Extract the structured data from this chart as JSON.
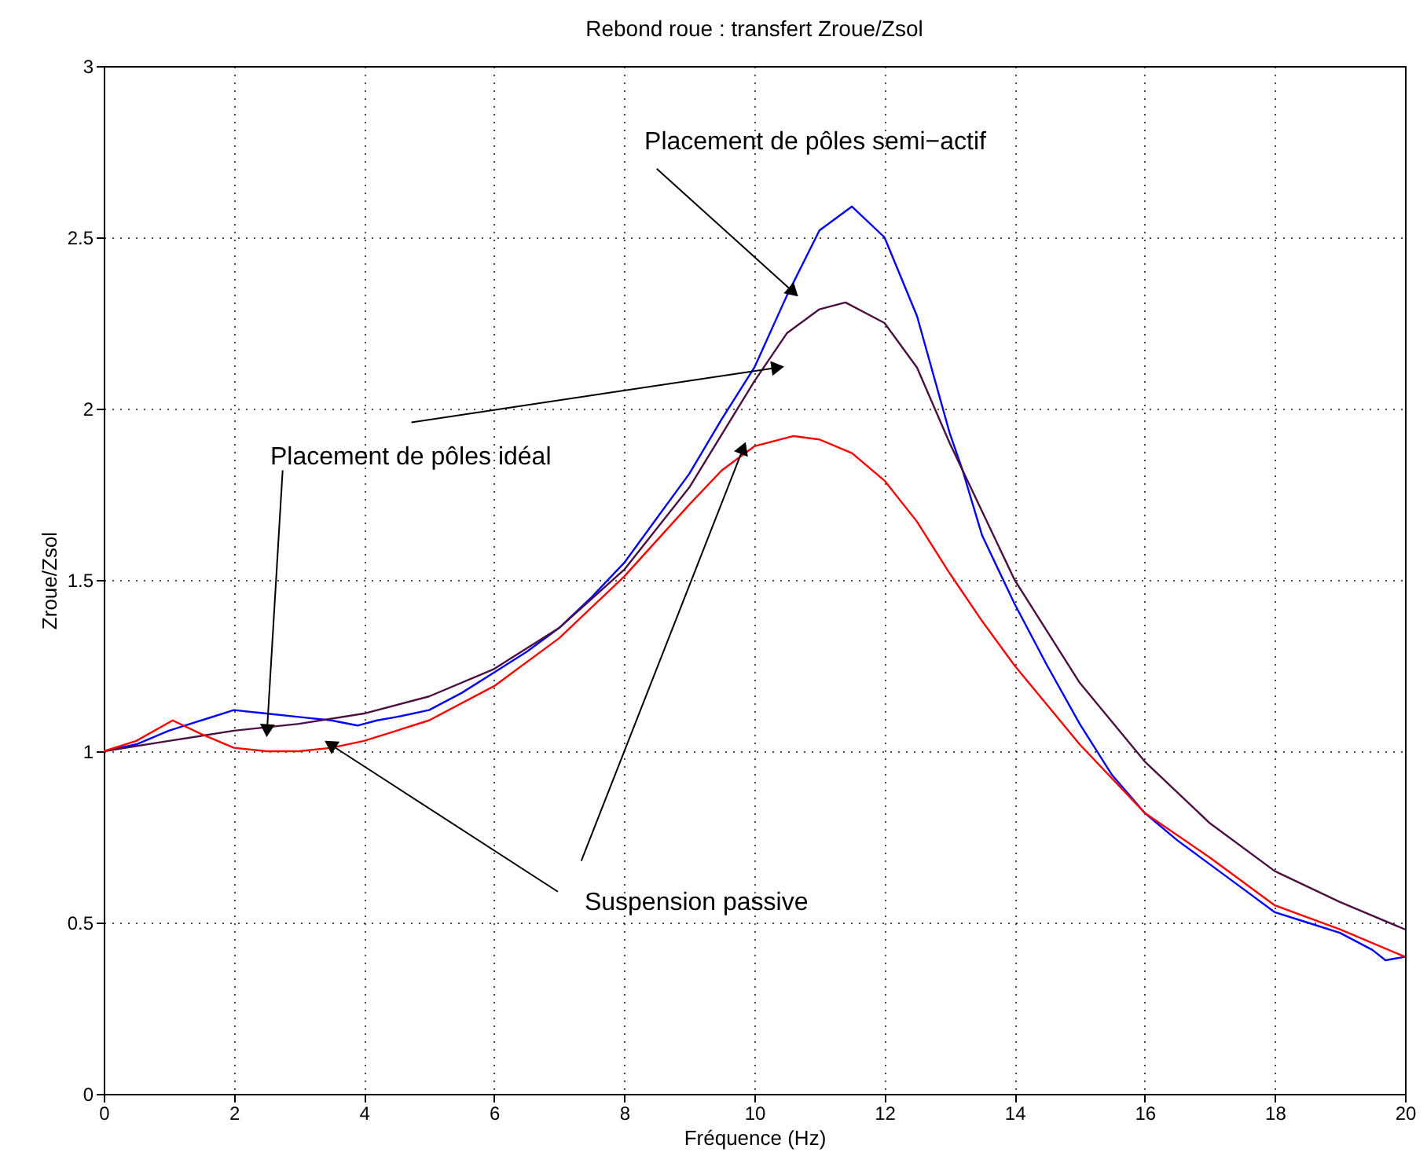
{
  "chart_data": {
    "type": "line",
    "title": "Rebond roue : transfert Zroue/Zsol",
    "xlabel": "Fréquence (Hz)",
    "ylabel": "Zroue/Zsol",
    "xlim": [
      0,
      20
    ],
    "xticks": [
      0,
      2,
      4,
      6,
      8,
      10,
      12,
      14,
      16,
      18,
      20
    ],
    "ylim": [
      0,
      3
    ],
    "yticks": [
      {
        "value": 0,
        "label": "0"
      },
      0.5,
      {
        "value": 1,
        "label": "1"
      },
      1.5,
      {
        "value": 2,
        "label": "2"
      },
      2.5,
      {
        "value": 3,
        "label": "3"
      }
    ],
    "grid": true,
    "line_style": "solid",
    "series": [
      {
        "color": "#0000ff",
        "x": [
          0,
          0.5,
          1,
          1.5,
          2,
          2.5,
          3,
          3.5,
          3.9,
          4.2,
          4.5,
          5,
          5.5,
          6,
          6.5,
          7,
          7.5,
          8,
          8.5,
          9,
          9.5,
          10,
          10.5,
          11,
          11.5,
          12,
          12.5,
          13,
          13.2,
          13.5,
          14,
          14.5,
          15,
          15.5,
          16,
          16.5,
          17,
          17.5,
          18,
          18.5,
          19,
          19.5,
          19.7,
          20
        ],
        "values": [
          1.0,
          1.02,
          1.06,
          1.09,
          1.12,
          1.11,
          1.1,
          1.09,
          1.075,
          1.09,
          1.1,
          1.12,
          1.17,
          1.23,
          1.29,
          1.36,
          1.45,
          1.55,
          1.68,
          1.81,
          1.97,
          2.12,
          2.33,
          2.52,
          2.59,
          2.5,
          2.27,
          1.93,
          1.82,
          1.63,
          1.43,
          1.25,
          1.08,
          0.93,
          0.82,
          0.74,
          0.67,
          0.6,
          0.53,
          0.5,
          0.47,
          0.42,
          0.39,
          0.4
        ]
      },
      {
        "color": "#4b1040",
        "x": [
          0,
          1,
          2,
          3,
          4,
          5,
          6,
          7,
          8,
          9,
          10,
          10.5,
          11,
          11.4,
          12,
          12.5,
          13,
          13.5,
          14,
          15,
          16,
          17,
          18,
          19,
          20
        ],
        "values": [
          1.0,
          1.03,
          1.06,
          1.08,
          1.11,
          1.16,
          1.24,
          1.36,
          1.53,
          1.77,
          2.08,
          2.22,
          2.29,
          2.31,
          2.25,
          2.12,
          1.9,
          1.7,
          1.5,
          1.2,
          0.97,
          0.79,
          0.65,
          0.56,
          0.48
        ]
      },
      {
        "color": "#ff0000",
        "x": [
          0,
          0.5,
          1.06,
          1.5,
          2,
          2.5,
          3,
          3.5,
          4,
          5,
          6,
          7,
          8,
          9,
          9.5,
          10,
          10.6,
          11,
          11.5,
          12,
          12.5,
          13,
          13.5,
          14,
          15,
          16,
          17,
          18,
          19,
          20
        ],
        "values": [
          1.0,
          1.03,
          1.09,
          1.05,
          1.01,
          1.0,
          1.0,
          1.01,
          1.03,
          1.09,
          1.19,
          1.33,
          1.51,
          1.72,
          1.82,
          1.89,
          1.92,
          1.91,
          1.87,
          1.79,
          1.67,
          1.52,
          1.38,
          1.25,
          1.02,
          0.82,
          0.69,
          0.55,
          0.48,
          0.4
        ]
      }
    ],
    "annotations": [
      {
        "text": "Placement de pôles semi−actif",
        "x": 10.6,
        "y": 2.34
      },
      {
        "text": "Placement de pôles idéal",
        "x": 2.51,
        "y": 1.06
      },
      {
        "text": "Suspension passive",
        "x": 3.48,
        "y": 1.02
      }
    ]
  }
}
